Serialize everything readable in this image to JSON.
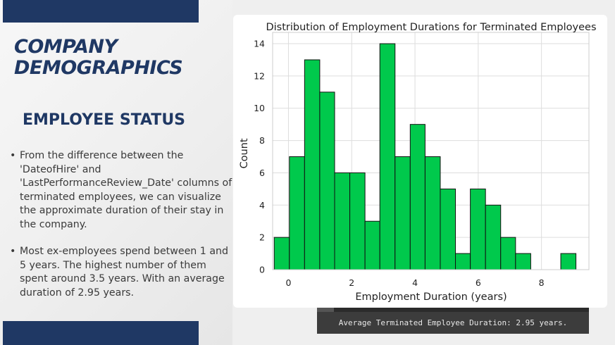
{
  "slide": {
    "title_line1": "COMPANY",
    "title_line2": "DEMOGRAPHICS",
    "subtitle": "EMPLOYEE STATUS",
    "bullets": [
      "From the difference between the 'DateofHire' and 'LastPerformanceReview_Date' columns of terminated employees, we can visualize the approximate duration of their stay in the company.",
      "Most ex-employees spend between 1 and 5 years. The highest number of them spent around 3.5 years. With an average duration of 2.95 years."
    ],
    "bullet_symbol": "•",
    "colors": {
      "navy": "#1f3864",
      "bar_fill": "#00c94c"
    }
  },
  "console": {
    "output": "Average Terminated Employee Duration: 2.95 years."
  },
  "chart_data": {
    "type": "bar",
    "title": "Distribution of Employment Durations for Terminated Employees",
    "xlabel": "Employment Duration (years)",
    "ylabel": "Count",
    "xlim": [
      -0.5,
      9.5
    ],
    "ylim": [
      0,
      14.7
    ],
    "xticks": [
      0,
      2,
      4,
      6,
      8
    ],
    "yticks": [
      0,
      2,
      4,
      6,
      8,
      10,
      12,
      14
    ],
    "grid": true,
    "bars": [
      {
        "x0": -0.45,
        "x1": 0.03,
        "count": 2
      },
      {
        "x0": 0.03,
        "x1": 0.51,
        "count": 7
      },
      {
        "x0": 0.51,
        "x1": 0.99,
        "count": 13
      },
      {
        "x0": 0.99,
        "x1": 1.46,
        "count": 11
      },
      {
        "x0": 1.46,
        "x1": 1.94,
        "count": 6
      },
      {
        "x0": 1.94,
        "x1": 2.42,
        "count": 6
      },
      {
        "x0": 2.42,
        "x1": 2.89,
        "count": 3
      },
      {
        "x0": 2.89,
        "x1": 3.37,
        "count": 14
      },
      {
        "x0": 3.37,
        "x1": 3.85,
        "count": 7
      },
      {
        "x0": 3.85,
        "x1": 4.32,
        "count": 9
      },
      {
        "x0": 4.32,
        "x1": 4.8,
        "count": 7
      },
      {
        "x0": 4.8,
        "x1": 5.28,
        "count": 5
      },
      {
        "x0": 5.28,
        "x1": 5.75,
        "count": 1
      },
      {
        "x0": 5.75,
        "x1": 6.23,
        "count": 5
      },
      {
        "x0": 6.23,
        "x1": 6.71,
        "count": 4
      },
      {
        "x0": 6.71,
        "x1": 7.18,
        "count": 2
      },
      {
        "x0": 7.18,
        "x1": 7.66,
        "count": 1
      },
      {
        "x0": 7.66,
        "x1": 8.14,
        "count": 0
      },
      {
        "x0": 8.14,
        "x1": 8.61,
        "count": 0
      },
      {
        "x0": 8.61,
        "x1": 9.09,
        "count": 1
      }
    ]
  }
}
